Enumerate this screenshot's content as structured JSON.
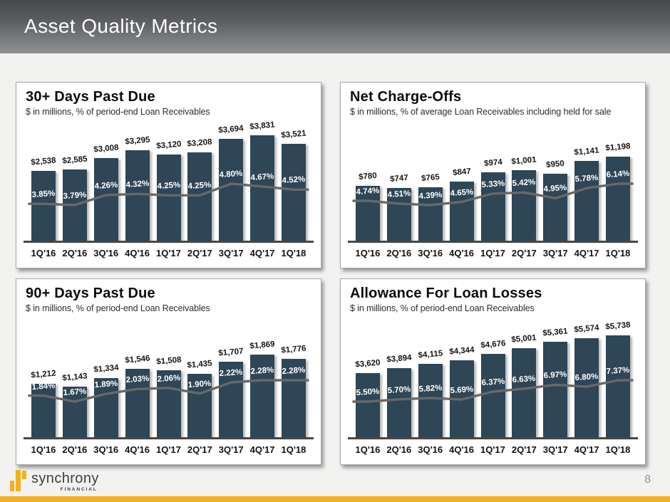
{
  "header": {
    "title": "Asset Quality Metrics"
  },
  "footer": {
    "page_number": "8",
    "logo_text": "synchrony",
    "logo_subtext": "FINANCIAL"
  },
  "colors": {
    "bar": "#2e4656",
    "trend_line": "#686868",
    "accent_gold": "#f3b021",
    "header_gradient_top": "#45474a",
    "header_gradient_bottom": "#8f9193"
  },
  "chart_data": [
    {
      "type": "bar",
      "title": "30+ Days Past Due",
      "subtitle": "$ in millions, % of period-end Loan Receivables",
      "categories": [
        "1Q'16",
        "2Q'16",
        "3Q'16",
        "4Q'16",
        "1Q'17",
        "2Q'17",
        "3Q'17",
        "4Q'17",
        "1Q'18"
      ],
      "legend_position": "none",
      "grid": false,
      "series": [
        {
          "name": "$ in millions",
          "type": "bar",
          "values": [
            2538,
            2585,
            3008,
            3295,
            3120,
            3208,
            3694,
            3831,
            3521
          ],
          "labels": [
            "$2,538",
            "$2,585",
            "$3,008",
            "$3,295",
            "$3,120",
            "$3,208",
            "$3,694",
            "$3,831",
            "$3,521"
          ]
        },
        {
          "name": "% of period-end Loan Receivables",
          "type": "line",
          "values": [
            3.85,
            3.79,
            4.26,
            4.32,
            4.25,
            4.25,
            4.8,
            4.67,
            4.52
          ],
          "labels": [
            "3.85%",
            "3.79%",
            "4.26%",
            "4.32%",
            "4.25%",
            "4.25%",
            "4.80%",
            "4.67%",
            "4.52%"
          ]
        }
      ]
    },
    {
      "type": "bar",
      "title": "Net Charge-Offs",
      "subtitle": "$ in millions, % of average Loan Receivables including held for sale",
      "categories": [
        "1Q'16",
        "2Q'16",
        "3Q'16",
        "4Q'16",
        "1Q'17",
        "2Q'17",
        "3Q'17",
        "4Q'17",
        "1Q'18"
      ],
      "legend_position": "none",
      "grid": false,
      "series": [
        {
          "name": "$ in millions",
          "type": "bar",
          "values": [
            780,
            747,
            765,
            847,
            974,
            1001,
            950,
            1141,
            1198
          ],
          "labels": [
            "$780",
            "$747",
            "$765",
            "$847",
            "$974",
            "$1,001",
            "$950",
            "$1,141",
            "$1,198"
          ]
        },
        {
          "name": "% of average Loan Receivables including held for sale",
          "type": "line",
          "values": [
            4.74,
            4.51,
            4.39,
            4.65,
            5.33,
            5.42,
            4.95,
            5.78,
            6.14
          ],
          "labels": [
            "4.74%",
            "4.51%",
            "4.39%",
            "4.65%",
            "5.33%",
            "5.42%",
            "4.95%",
            "5.78%",
            "6.14%"
          ]
        }
      ]
    },
    {
      "type": "bar",
      "title": "90+ Days Past Due",
      "subtitle": "$ in millions, % of period-end Loan Receivables",
      "categories": [
        "1Q'16",
        "2Q'16",
        "3Q'16",
        "4Q'16",
        "1Q'17",
        "2Q'17",
        "3Q'17",
        "4Q'17",
        "1Q'18"
      ],
      "legend_position": "none",
      "grid": false,
      "series": [
        {
          "name": "$ in millions",
          "type": "bar",
          "values": [
            1212,
            1143,
            1334,
            1546,
            1508,
            1435,
            1707,
            1869,
            1776
          ],
          "labels": [
            "$1,212",
            "$1,143",
            "$1,334",
            "$1,546",
            "$1,508",
            "$1,435",
            "$1,707",
            "$1,869",
            "$1,776"
          ]
        },
        {
          "name": "% of period-end Loan Receivables",
          "type": "line",
          "values": [
            1.84,
            1.67,
            1.89,
            2.03,
            2.06,
            1.9,
            2.22,
            2.28,
            2.28
          ],
          "labels": [
            "1.84%",
            "1.67%",
            "1.89%",
            "2.03%",
            "2.06%",
            "1.90%",
            "2.22%",
            "2.28%",
            "2.28%"
          ]
        }
      ]
    },
    {
      "type": "bar",
      "title": "Allowance For Loan Losses",
      "subtitle": "$ in millions, % of period-end Loan Receivables",
      "categories": [
        "1Q'16",
        "2Q'16",
        "3Q'16",
        "4Q'16",
        "1Q'17",
        "2Q'17",
        "3Q'17",
        "4Q'17",
        "1Q'18"
      ],
      "legend_position": "none",
      "grid": false,
      "series": [
        {
          "name": "$ in millions",
          "type": "bar",
          "values": [
            3620,
            3894,
            4115,
            4344,
            4676,
            5001,
            5361,
            5574,
            5738
          ],
          "labels": [
            "$3,620",
            "$3,894",
            "$4,115",
            "$4,344",
            "$4,676",
            "$5,001",
            "$5,361",
            "$5,574",
            "$5,738"
          ]
        },
        {
          "name": "% of period-end Loan Receivables",
          "type": "line",
          "values": [
            5.5,
            5.7,
            5.82,
            5.69,
            6.37,
            6.63,
            6.97,
            6.8,
            7.37
          ],
          "labels": [
            "5.50%",
            "5.70%",
            "5.82%",
            "5.69%",
            "6.37%",
            "6.63%",
            "6.97%",
            "6.80%",
            "7.37%"
          ]
        }
      ]
    }
  ]
}
